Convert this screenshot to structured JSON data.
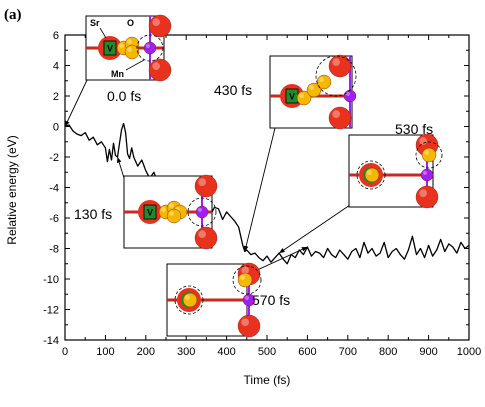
{
  "panel_label": "(a)",
  "chart_data": {
    "type": "line",
    "xlabel": "Time (fs)",
    "ylabel": "Relative energy (eV)",
    "xlim": [
      0,
      1000
    ],
    "ylim": [
      -14,
      6
    ],
    "xticks": [
      0,
      100,
      200,
      300,
      400,
      500,
      600,
      700,
      800,
      900,
      1000
    ],
    "yticks": [
      6,
      4,
      2,
      0,
      -2,
      -4,
      -6,
      -8,
      -10,
      -12,
      -14
    ],
    "grid": false,
    "series": [
      {
        "color": "#000000",
        "x": [
          0,
          10,
          20,
          30,
          40,
          50,
          60,
          70,
          80,
          90,
          100,
          105,
          110,
          115,
          120,
          125,
          130,
          135,
          140,
          145,
          150,
          155,
          160,
          165,
          170,
          180,
          190,
          200,
          210,
          220,
          230,
          240,
          250,
          260,
          270,
          280,
          290,
          300,
          310,
          320,
          330,
          340,
          350,
          360,
          370,
          380,
          390,
          400,
          410,
          420,
          430,
          440,
          445,
          450,
          460,
          470,
          480,
          490,
          500,
          510,
          520,
          530,
          540,
          550,
          560,
          570,
          580,
          590,
          600,
          610,
          620,
          630,
          640,
          650,
          660,
          670,
          680,
          690,
          700,
          710,
          720,
          730,
          740,
          750,
          760,
          770,
          780,
          790,
          800,
          810,
          820,
          830,
          840,
          850,
          860,
          870,
          880,
          890,
          900,
          910,
          920,
          930,
          940,
          950,
          960,
          970,
          980,
          990,
          1000
        ],
        "y": [
          0.0,
          0.1,
          -0.3,
          -0.5,
          -0.6,
          -0.4,
          -0.9,
          -0.7,
          -1.2,
          -1.0,
          -1.4,
          -2.3,
          -1.5,
          -2.2,
          -1.1,
          -1.9,
          -2.0,
          -1.1,
          -0.2,
          0.2,
          -0.4,
          -1.8,
          -2.1,
          -1.4,
          -2.0,
          -2.6,
          -2.2,
          -2.9,
          -3.4,
          -3.0,
          -3.7,
          -3.3,
          -4.0,
          -3.8,
          -4.2,
          -3.9,
          -4.4,
          -4.2,
          -4.7,
          -4.3,
          -5.0,
          -4.5,
          -5.0,
          -5.8,
          -5.3,
          -5.4,
          -6.1,
          -5.6,
          -5.9,
          -6.2,
          -6.6,
          -7.8,
          -8.2,
          -8.1,
          -8.4,
          -8.3,
          -8.6,
          -8.8,
          -8.5,
          -8.9,
          -8.6,
          -8.3,
          -8.7,
          -9.0,
          -8.4,
          -8.6,
          -8.1,
          -8.4,
          -7.9,
          -8.5,
          -8.2,
          -8.3,
          -8.6,
          -8.0,
          -8.4,
          -8.6,
          -8.1,
          -8.4,
          -8.7,
          -8.2,
          -8.0,
          -8.6,
          -7.6,
          -8.3,
          -8.0,
          -8.5,
          -8.3,
          -7.6,
          -8.6,
          -8.2,
          -8.0,
          -8.4,
          -8.7,
          -8.1,
          -7.2,
          -8.4,
          -8.0,
          -8.6,
          -7.8,
          -8.5,
          -8.1,
          -7.4,
          -8.2,
          -7.7,
          -7.9,
          -8.3,
          -7.6,
          -8.0,
          -7.8
        ]
      }
    ],
    "annotations": [
      {
        "label": "0.0 fs",
        "x": 0,
        "y": 0.0
      },
      {
        "label": "130 fs",
        "x": 130,
        "y": -2.0
      },
      {
        "label": "430 fs",
        "x": 445,
        "y": -8.2
      },
      {
        "label": "530 fs",
        "x": 530,
        "y": -8.3
      },
      {
        "label": "570 fs",
        "x": 600,
        "y": -7.9
      }
    ]
  },
  "inset_labels": {
    "sr": "Sr",
    "o": "O",
    "mn": "Mn",
    "v": "V"
  },
  "colors": {
    "line": "#000000",
    "oxygen": "#e8321e",
    "gold": "#f5b800",
    "manganese": "#a020f0",
    "vacancy": "#1f8a2e",
    "bond_red": "#c8281e"
  }
}
